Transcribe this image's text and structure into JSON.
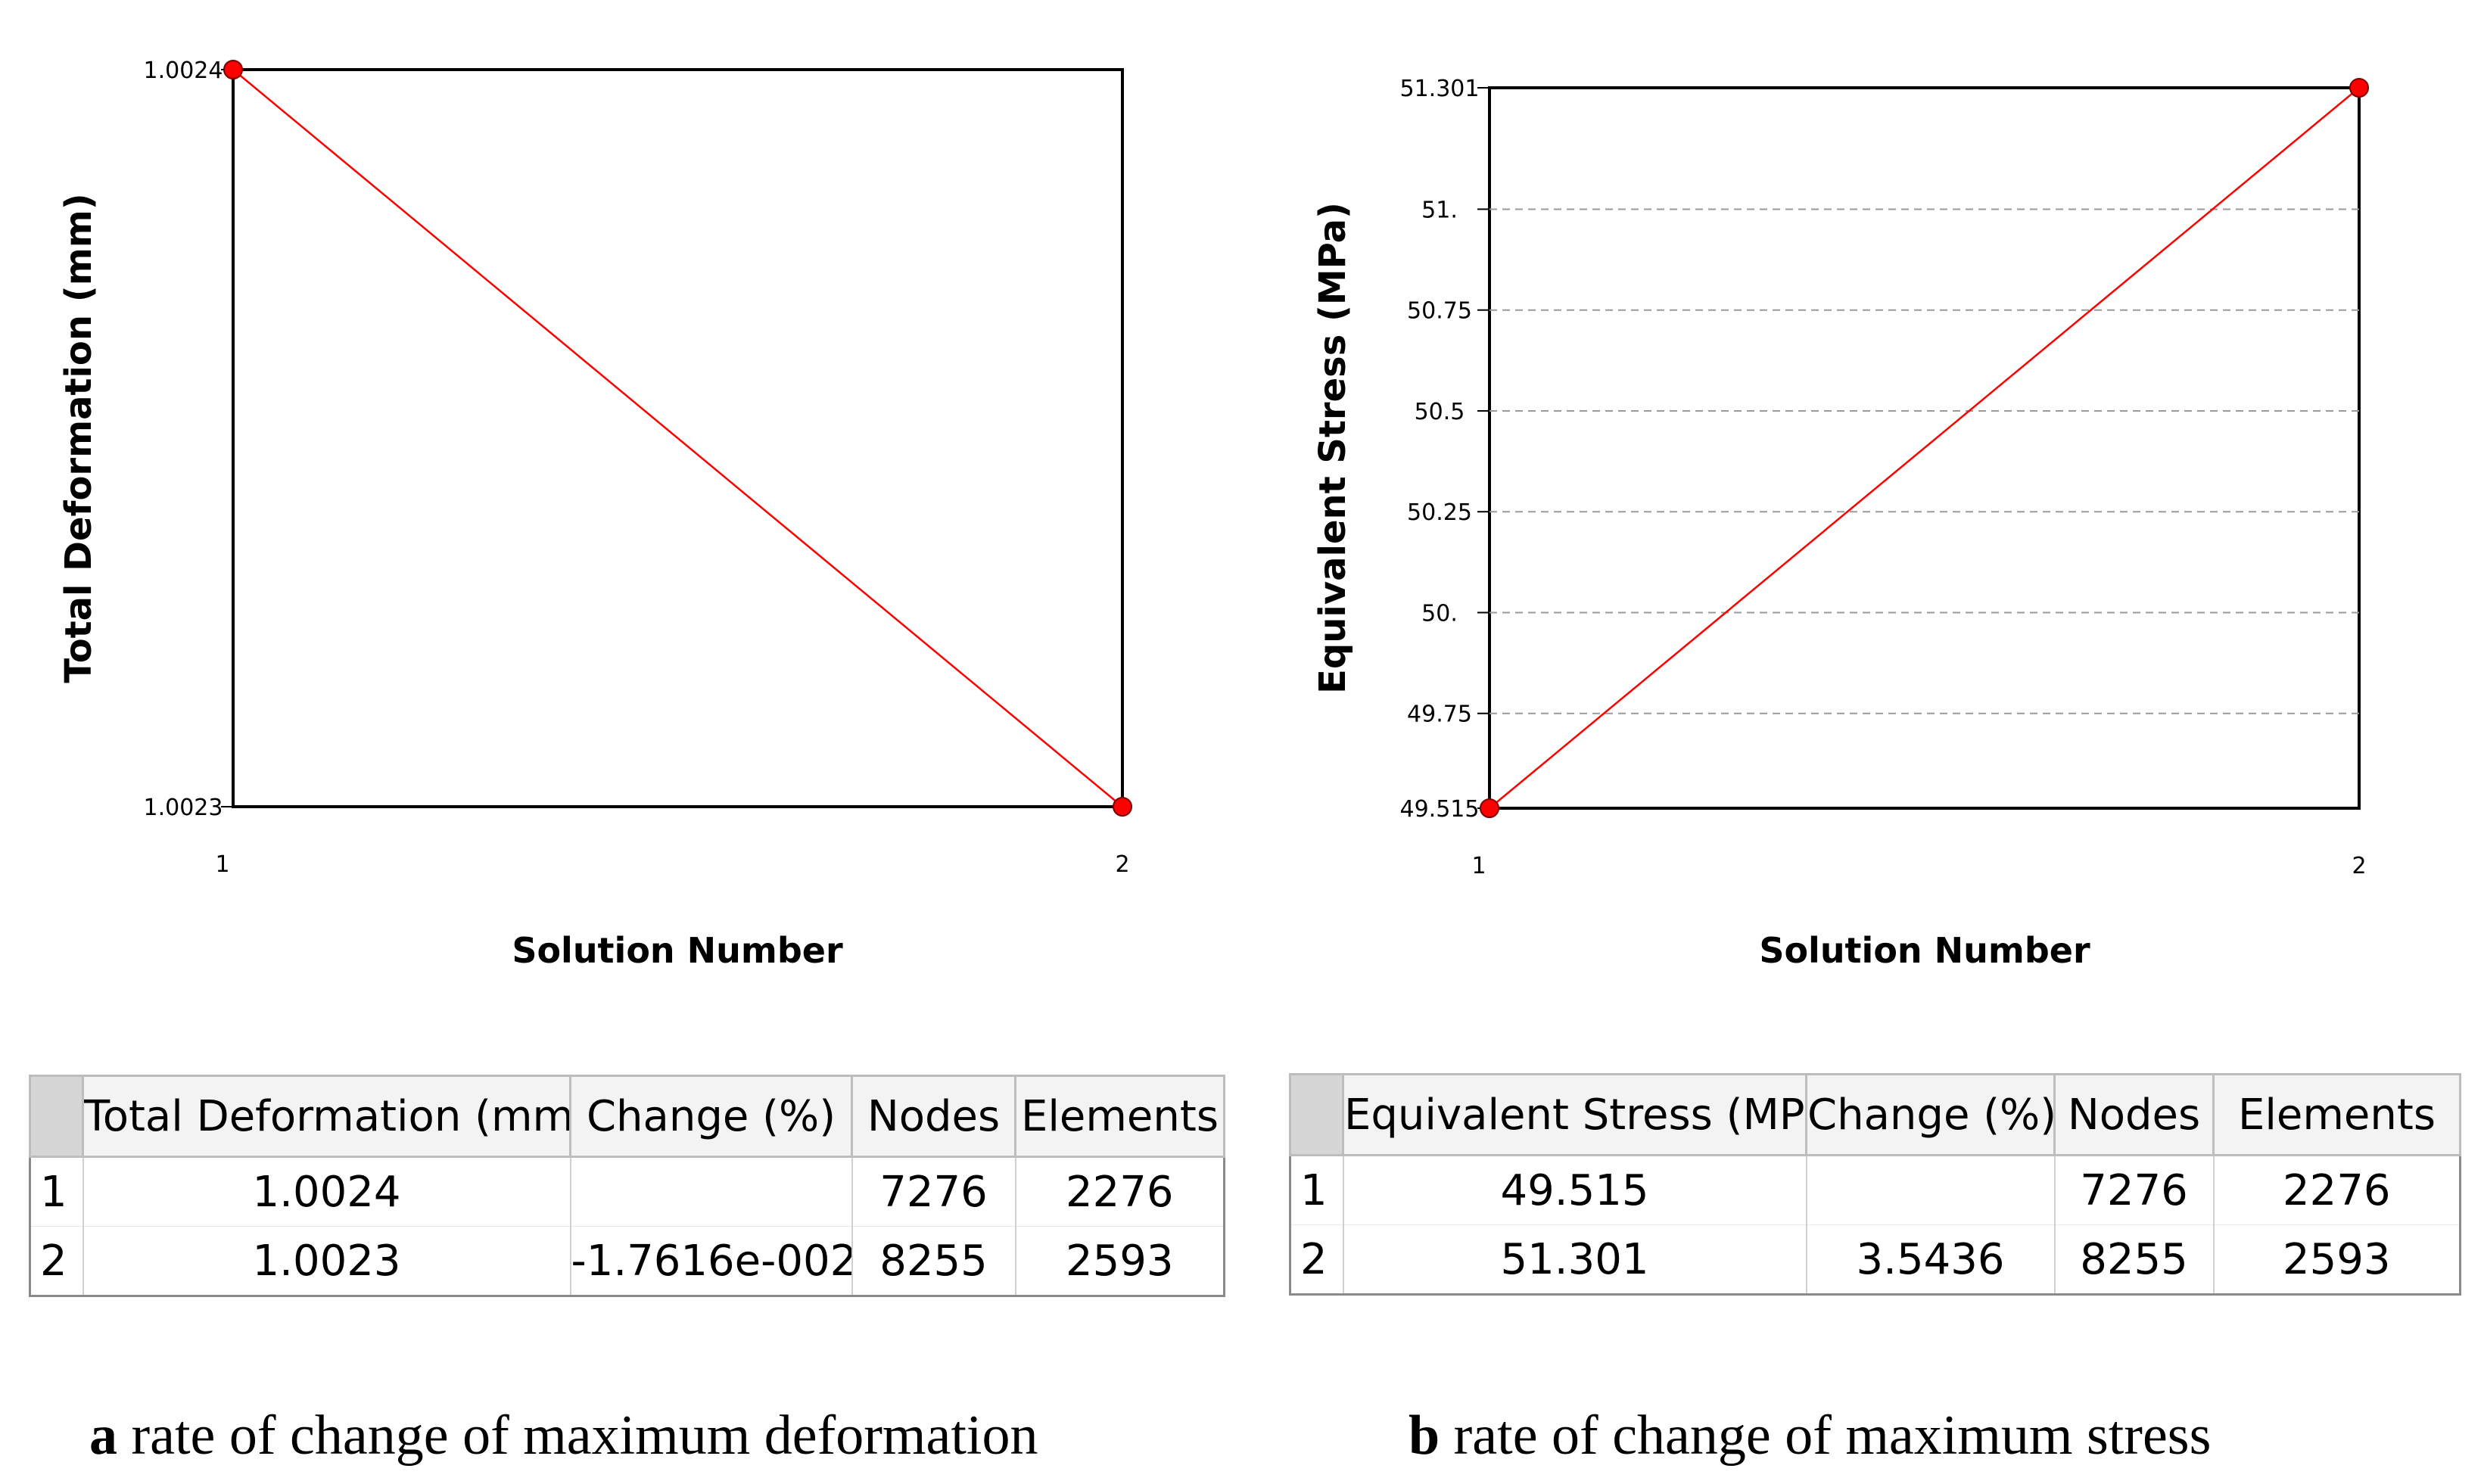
{
  "chart_data": [
    {
      "type": "line",
      "title": "",
      "xlabel": "Solution Number",
      "ylabel": "Total Deformation  (mm)",
      "x": [
        1,
        2
      ],
      "series": [
        {
          "name": "Total Deformation (mm)",
          "values": [
            1.0024,
            1.0023
          ],
          "color": "#ff0000"
        }
      ],
      "ylim": [
        1.0023,
        1.0024
      ],
      "xlim": [
        1,
        2
      ],
      "y_ticks": [
        "1.0024",
        "1.0023"
      ],
      "y_tick_values": [
        1.0024,
        1.0023
      ],
      "x_ticks": [
        "1",
        "2"
      ],
      "grid": false
    },
    {
      "type": "line",
      "title": "",
      "xlabel": "Solution Number",
      "ylabel": "Equivalent Stress  (MPa)",
      "x": [
        1,
        2
      ],
      "series": [
        {
          "name": "Equivalent Stress (MPa)",
          "values": [
            49.515,
            51.301
          ],
          "color": "#ff0000"
        }
      ],
      "ylim": [
        49.515,
        51.301
      ],
      "xlim": [
        1,
        2
      ],
      "y_ticks": [
        "51.301",
        "51.",
        "50.75",
        "50.5",
        "50.25",
        "50.",
        "49.75",
        "49.515"
      ],
      "y_tick_values": [
        51.301,
        51.0,
        50.75,
        50.5,
        50.25,
        50.0,
        49.75,
        49.515
      ],
      "x_ticks": [
        "1",
        "2"
      ],
      "grid": true
    }
  ],
  "tables": [
    {
      "headers": [
        "",
        "Total Deformation (mm)",
        "Change (%)",
        "Nodes",
        "Elements"
      ],
      "rows": [
        [
          "1",
          "1.0024",
          "",
          "7276",
          "2276"
        ],
        [
          "2",
          "1.0023",
          "-1.7616e-002",
          "8255",
          "2593"
        ]
      ]
    },
    {
      "headers": [
        "",
        "Equivalent Stress (MPa)",
        "Change (%)",
        "Nodes",
        "Elements"
      ],
      "rows": [
        [
          "1",
          "49.515",
          "",
          "7276",
          "2276"
        ],
        [
          "2",
          "51.301",
          "3.5436",
          "8255",
          "2593"
        ]
      ]
    }
  ],
  "captions": [
    {
      "letter": "a",
      "text": " rate of change of maximum deformation"
    },
    {
      "letter": "b",
      "text": " rate of change of maximum stress"
    }
  ],
  "colors": {
    "series_line": "#ff0000",
    "marker_fill": "#ff0000",
    "marker_stroke": "#7a0000",
    "frame": "#000000",
    "grid": "#9a9a9a"
  }
}
